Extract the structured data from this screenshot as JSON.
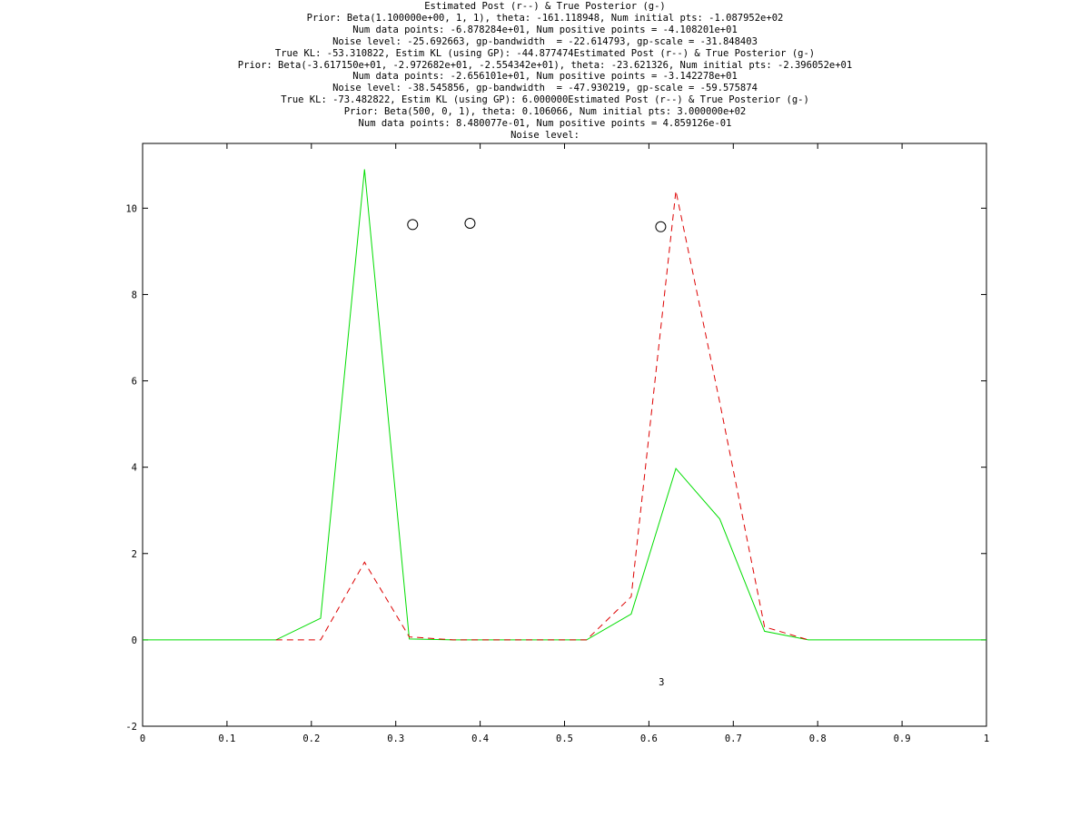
{
  "chart_data": {
    "type": "line",
    "title_lines": [
      "Estimated Post (r--) & True Posterior (g-)",
      "Prior: Beta(1.100000e+00, 1, 1), theta: -161.118948, Num initial pts: -1.087952e+02",
      "Num data points: -6.878284e+01, Num positive points = -4.108201e+01",
      "Noise level: -25.692663, gp-bandwidth  = -22.614793, gp-scale = -31.848403",
      "True KL: -53.310822, Estim KL (using GP): -44.877474Estimated Post (r--) & True Posterior (g-)",
      "Prior: Beta(-3.617150e+01, -2.972682e+01, -2.554342e+01), theta: -23.621326, Num initial pts: -2.396052e+01",
      "Num data points: -2.656101e+01, Num positive points = -3.142278e+01",
      "Noise level: -38.545856, gp-bandwidth  = -47.930219, gp-scale = -59.575874",
      "True KL: -73.482822, Estim KL (using GP): 6.000000Estimated Post (r--) & True Posterior (g-)",
      "Prior: Beta(500, 0, 1), theta: 0.106066, Num initial pts: 3.000000e+02",
      "Num data points: 8.480077e-01, Num positive points = 4.859126e-01",
      "Noise level:"
    ],
    "xlim": [
      0,
      1
    ],
    "ylim": [
      -2,
      11.5
    ],
    "xticks": [
      "0",
      "0.1",
      "0.2",
      "0.3",
      "0.4",
      "0.5",
      "0.6",
      "0.7",
      "0.8",
      "0.9",
      "1"
    ],
    "yticks": [
      "-2",
      "0",
      "2",
      "4",
      "6",
      "8",
      "10"
    ],
    "grid": false,
    "series": [
      {
        "style": "solid",
        "color": "#00dd00",
        "x": [
          0,
          0.158,
          0.211,
          0.263,
          0.316,
          0.368,
          0.421,
          0.474,
          0.526,
          0.579,
          0.632,
          0.684,
          0.737,
          0.789,
          1.0
        ],
        "y": [
          0,
          0,
          0.5,
          10.9,
          0.02,
          0,
          0,
          0,
          0,
          0.6,
          3.97,
          2.8,
          0.2,
          0,
          0
        ]
      },
      {
        "style": "dashed",
        "color": "#dd0000",
        "x": [
          0.158,
          0.211,
          0.263,
          0.316,
          0.368,
          0.421,
          0.474,
          0.526,
          0.579,
          0.632,
          0.684,
          0.737,
          0.789
        ],
        "y": [
          0,
          0,
          1.8,
          0.07,
          0,
          0,
          0,
          0,
          1.0,
          10.4,
          5.5,
          0.3,
          0
        ]
      }
    ],
    "markers": [
      {
        "x": 0.32,
        "y": 9.62
      },
      {
        "x": 0.388,
        "y": 9.65
      },
      {
        "x": 0.614,
        "y": 9.57
      }
    ],
    "annotations": [
      {
        "text": "3",
        "x": 0.615,
        "y": -1.05
      }
    ]
  }
}
